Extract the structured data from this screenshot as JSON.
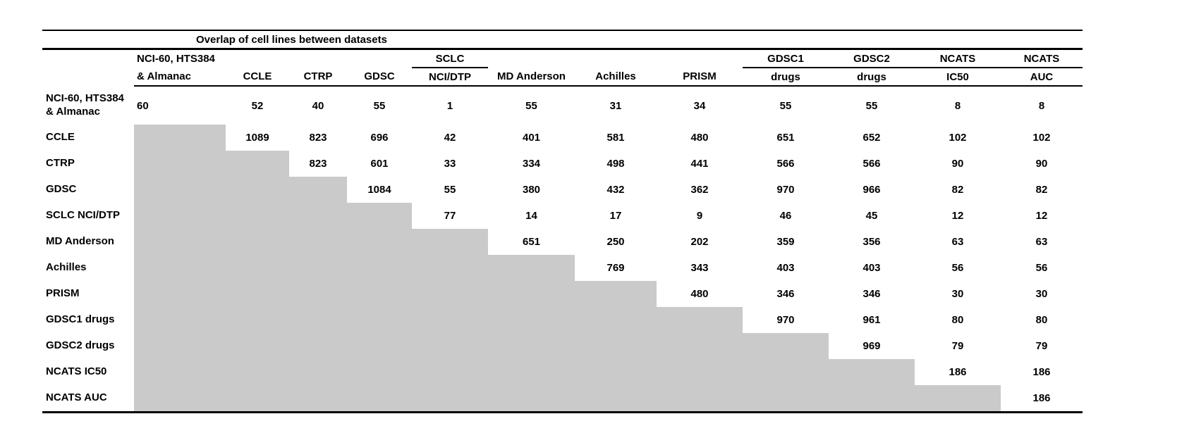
{
  "title": "Overlap of cell lines between datasets",
  "columns": [
    {
      "top": "NCI-60, HTS384",
      "bottom": "& Almanac"
    },
    {
      "top": "",
      "bottom": "CCLE"
    },
    {
      "top": "",
      "bottom": "CTRP"
    },
    {
      "top": "",
      "bottom": "GDSC"
    },
    {
      "top": "SCLC",
      "bottom": "NCI/DTP"
    },
    {
      "top": "",
      "bottom": "MD Anderson"
    },
    {
      "top": "",
      "bottom": "Achilles"
    },
    {
      "top": "",
      "bottom": "PRISM"
    },
    {
      "top": "GDSC1",
      "bottom": "drugs"
    },
    {
      "top": "GDSC2",
      "bottom": "drugs"
    },
    {
      "top": "NCATS",
      "bottom": "IC50"
    },
    {
      "top": "NCATS",
      "bottom": "AUC"
    }
  ],
  "rows": [
    {
      "label": "NCI-60, HTS384 & Almanac",
      "values": [
        60,
        52,
        40,
        55,
        1,
        55,
        31,
        34,
        55,
        55,
        8,
        8
      ]
    },
    {
      "label": "CCLE",
      "values": [
        1089,
        823,
        696,
        42,
        401,
        581,
        480,
        651,
        652,
        102,
        102
      ]
    },
    {
      "label": "CTRP",
      "values": [
        823,
        601,
        33,
        334,
        498,
        441,
        566,
        566,
        90,
        90
      ]
    },
    {
      "label": "GDSC",
      "values": [
        1084,
        55,
        380,
        432,
        362,
        970,
        966,
        82,
        82
      ]
    },
    {
      "label": "SCLC NCI/DTP",
      "values": [
        77,
        14,
        17,
        9,
        46,
        45,
        12,
        12
      ]
    },
    {
      "label": "MD Anderson",
      "values": [
        651,
        250,
        202,
        359,
        356,
        63,
        63
      ]
    },
    {
      "label": "Achilles",
      "values": [
        769,
        343,
        403,
        403,
        56,
        56
      ]
    },
    {
      "label": "PRISM",
      "values": [
        480,
        346,
        346,
        30,
        30
      ]
    },
    {
      "label": "GDSC1 drugs",
      "values": [
        970,
        961,
        80,
        80
      ]
    },
    {
      "label": "GDSC2 drugs",
      "values": [
        969,
        79,
        79
      ]
    },
    {
      "label": "NCATS IC50",
      "values": [
        186,
        186
      ]
    },
    {
      "label": "NCATS AUC",
      "values": [
        186
      ]
    }
  ],
  "colors": {
    "shade": "#cacaca",
    "rule": "#000000",
    "text": "#000000",
    "background": "#ffffff"
  },
  "chart_data": {
    "type": "table",
    "title": "Overlap of cell lines between datasets",
    "datasets": [
      "NCI-60, HTS384 & Almanac",
      "CCLE",
      "CTRP",
      "GDSC",
      "SCLC NCI/DTP",
      "MD Anderson",
      "Achilles",
      "PRISM",
      "GDSC1 drugs",
      "GDSC2 drugs",
      "NCATS IC50",
      "NCATS AUC"
    ],
    "matrix_form": "upper-triangular; row i lists overlaps with datasets i..11; lower triangle shaded gray",
    "upper_triangle_values": [
      [
        60,
        52,
        40,
        55,
        1,
        55,
        31,
        34,
        55,
        55,
        8,
        8
      ],
      [
        1089,
        823,
        696,
        42,
        401,
        581,
        480,
        651,
        652,
        102,
        102
      ],
      [
        823,
        601,
        33,
        334,
        498,
        441,
        566,
        566,
        90,
        90
      ],
      [
        1084,
        55,
        380,
        432,
        362,
        970,
        966,
        82,
        82
      ],
      [
        77,
        14,
        17,
        9,
        46,
        45,
        12,
        12
      ],
      [
        651,
        250,
        202,
        359,
        356,
        63,
        63
      ],
      [
        769,
        343,
        403,
        403,
        56,
        56
      ],
      [
        480,
        346,
        346,
        30,
        30
      ],
      [
        970,
        961,
        80,
        80
      ],
      [
        969,
        79,
        79
      ],
      [
        186,
        186
      ],
      [
        186
      ]
    ]
  }
}
